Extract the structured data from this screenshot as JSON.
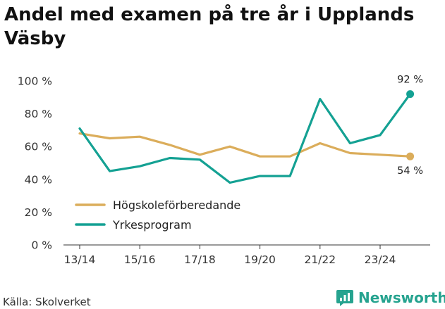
{
  "chart_data": {
    "type": "line",
    "title": "Andel med examen på tre år i Upplands Väsby",
    "x_tick_labels": [
      "13/14",
      "15/16",
      "17/18",
      "19/20",
      "21/22",
      "23/24"
    ],
    "y_tick_labels": [
      "0 %",
      "20 %",
      "40 %",
      "60 %",
      "80 %",
      "100 %"
    ],
    "ylim": [
      0,
      100
    ],
    "grid": false,
    "legend_position": "lower-left",
    "x": [
      "13/14",
      "14/15",
      "15/16",
      "16/17",
      "17/18",
      "18/19",
      "19/20",
      "20/21",
      "21/22",
      "22/23",
      "23/24",
      "24/25"
    ],
    "series": [
      {
        "name": "Högskoleförberedande",
        "color": "#dbad5b",
        "values": [
          68,
          65,
          66,
          61,
          55,
          60,
          54,
          54,
          62,
          56,
          55,
          54
        ],
        "end_label": "54 %"
      },
      {
        "name": "Yrkesprogram",
        "color": "#14a193",
        "values": [
          71,
          45,
          48,
          53,
          52,
          38,
          42,
          42,
          89,
          62,
          67,
          92
        ],
        "end_label": "92 %"
      }
    ]
  },
  "footer": {
    "source": "Källa: Skolverket",
    "brand": "Newsworthy",
    "brand_icon": "newsworthy-logo-icon"
  }
}
